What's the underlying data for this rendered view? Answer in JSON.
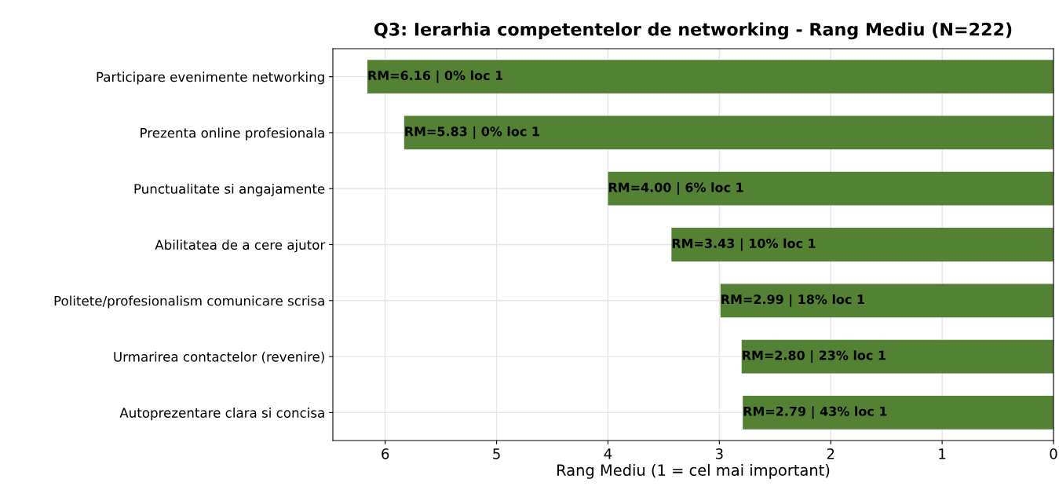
{
  "chart_data": {
    "type": "bar",
    "orientation": "horizontal",
    "title": "Q3: Ierarhia competentelor de networking - Rang Mediu (N=222)",
    "xlabel": "Rang Mediu (1 = cel mai important)",
    "categories": [
      "Participare evenimente networking",
      "Prezenta online profesionala",
      "Punctualitate si angajamente",
      "Abilitatea de a cere ajutor",
      "Politete/profesionalism comunicare scrisa",
      "Urmarirea contactelor (revenire)",
      "Autoprezentare clara si concisa"
    ],
    "values": [
      6.16,
      5.83,
      4.0,
      3.43,
      2.99,
      2.8,
      2.79
    ],
    "value_labels": [
      "RM=6.16 | 0% loc 1",
      "RM=5.83 | 0% loc 1",
      "RM=4.00 | 6% loc 1",
      "RM=3.43 | 10% loc 1",
      "RM=2.99 | 18% loc 1",
      "RM=2.80 | 23% loc 1",
      "RM=2.79 | 43% loc 1"
    ],
    "color": "#548235",
    "xlim": [
      6.47,
      0
    ],
    "xticks": [
      6,
      5,
      4,
      3,
      2,
      1,
      0
    ],
    "grid": true
  }
}
